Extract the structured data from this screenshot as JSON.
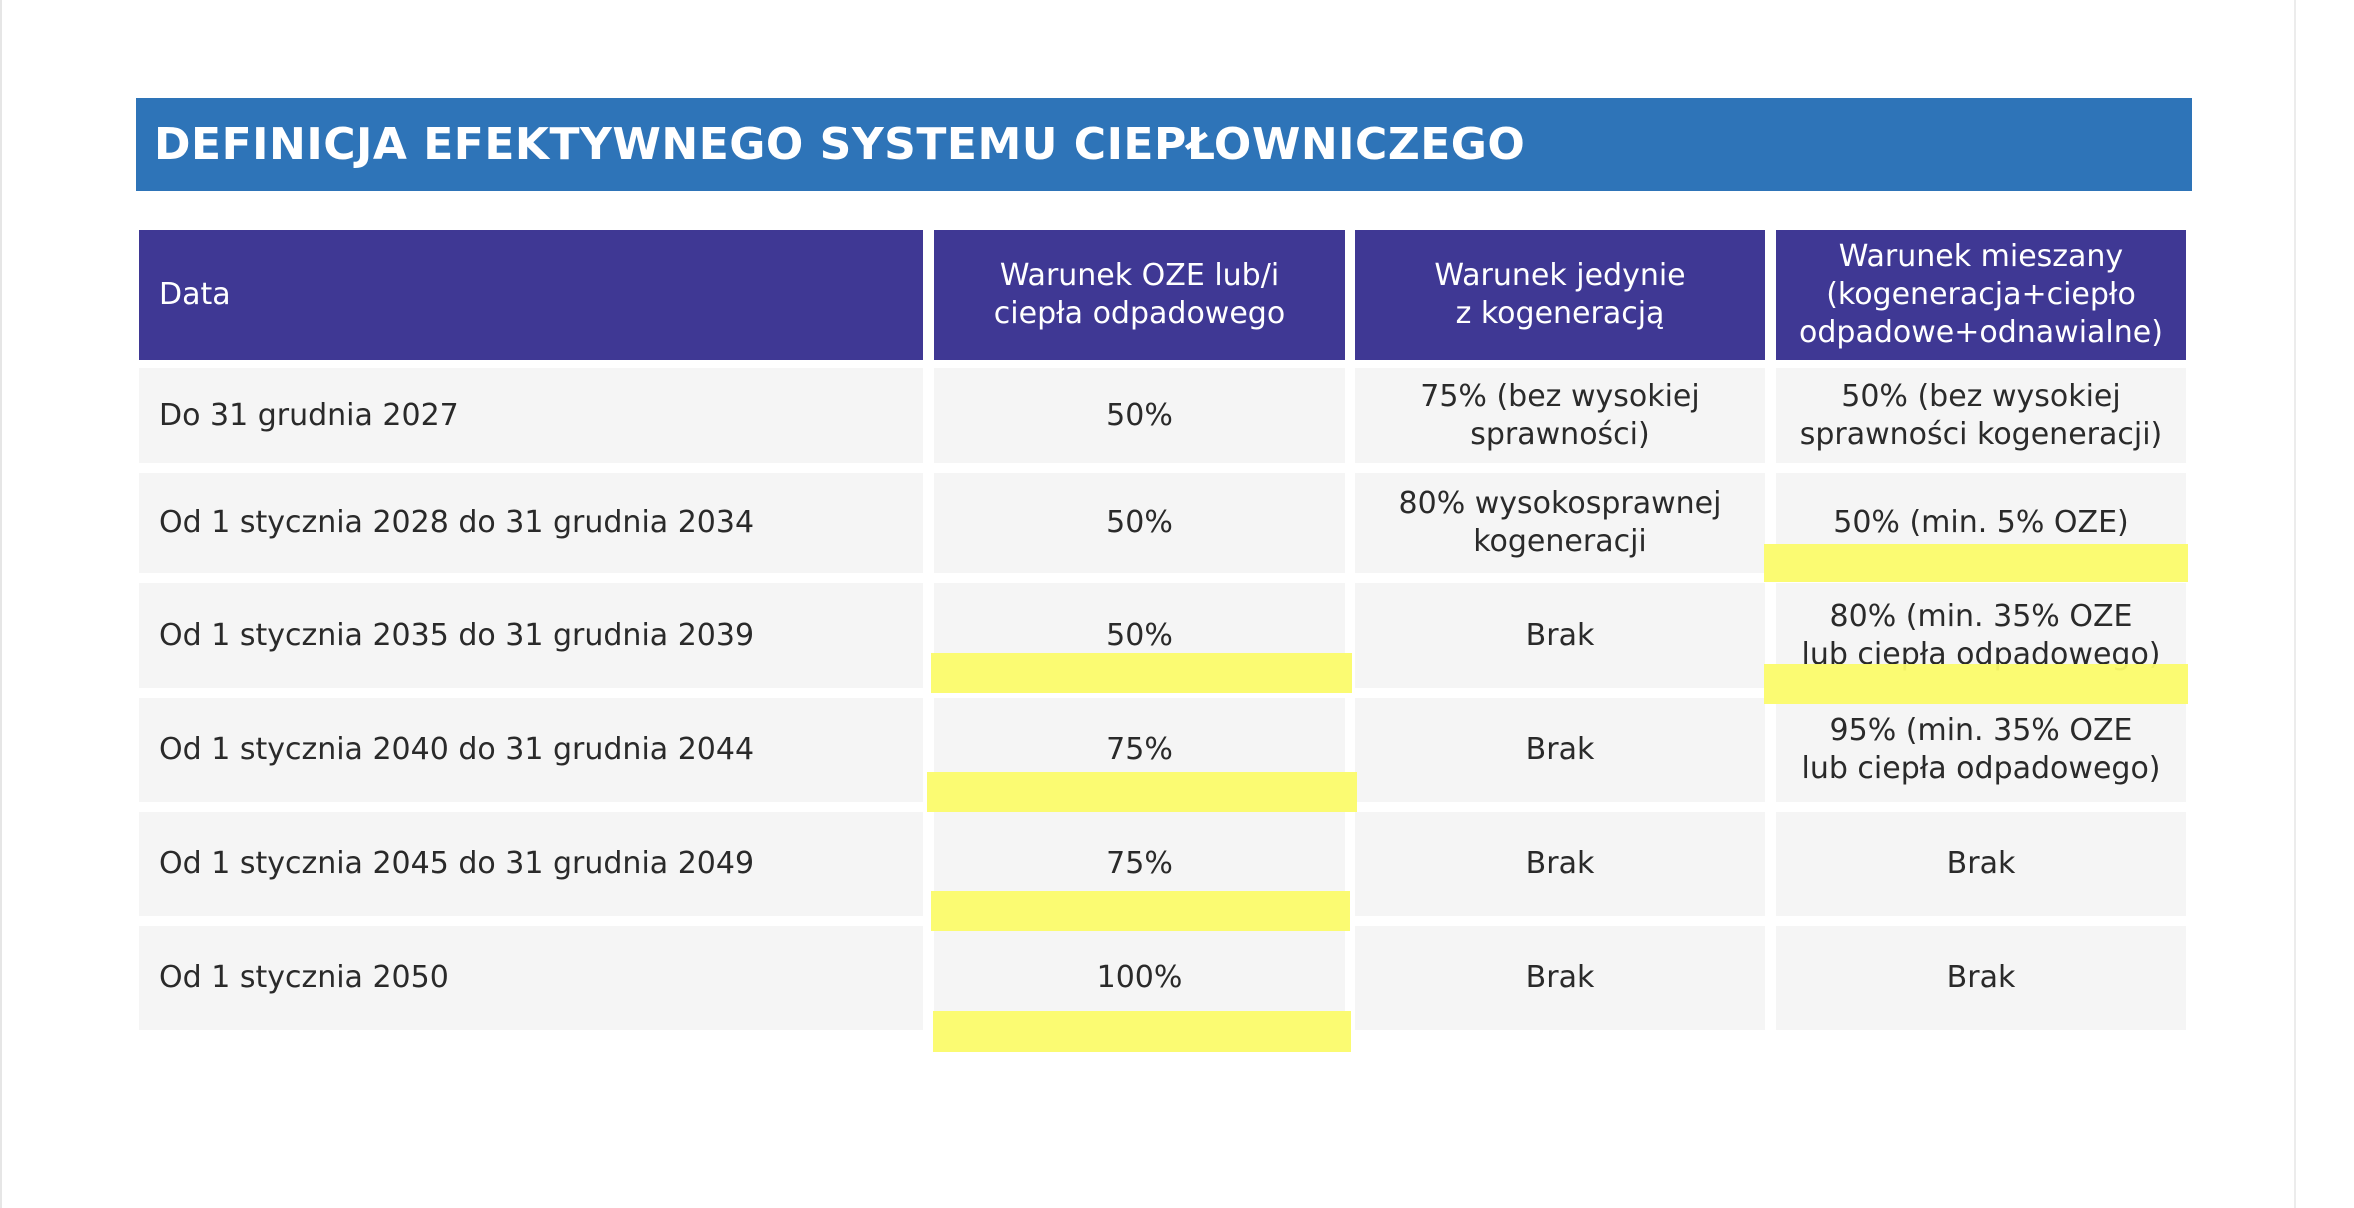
{
  "title": "DEFINICJA EFEKTYWNEGO SYSTEMU CIEPŁOWNICZEGO",
  "table": {
    "headers": [
      "Data",
      "Warunek OZE lub/i\nciepła odpadowego",
      "Warunek jedynie\nz kogeneracją",
      "Warunek mieszany\n(kogeneracja+ciepło\nodpadowe+odnawialne)"
    ],
    "rows": [
      [
        "Do 31 grudnia 2027",
        "50%",
        "75% (bez wysokiej\nsprawności)",
        "50% (bez wysokiej\nsprawności kogeneracji)"
      ],
      [
        "Od 1 stycznia 2028 do 31 grudnia 2034",
        "50%",
        "80% wysokosprawnej\nkogeneracji",
        "50% (min. 5% OZE)"
      ],
      [
        "Od 1 stycznia 2035 do 31 grudnia 2039",
        "50%",
        "Brak",
        "80% (min. 35% OZE\nlub ciepła odpadowego)"
      ],
      [
        "Od 1 stycznia 2040 do 31 grudnia 2044",
        "75%",
        "Brak",
        "95% (min. 35% OZE\nlub ciepła odpadowego)"
      ],
      [
        "Od 1 stycznia 2045 do 31 grudnia 2049",
        "75%",
        "Brak",
        "Brak"
      ],
      [
        "Od 1 stycznia 2050",
        "100%",
        "Brak",
        "Brak"
      ]
    ]
  },
  "highlight_color": "#fbfb6a",
  "header_color": "#3f3894",
  "banner_color": "#2e74b8"
}
